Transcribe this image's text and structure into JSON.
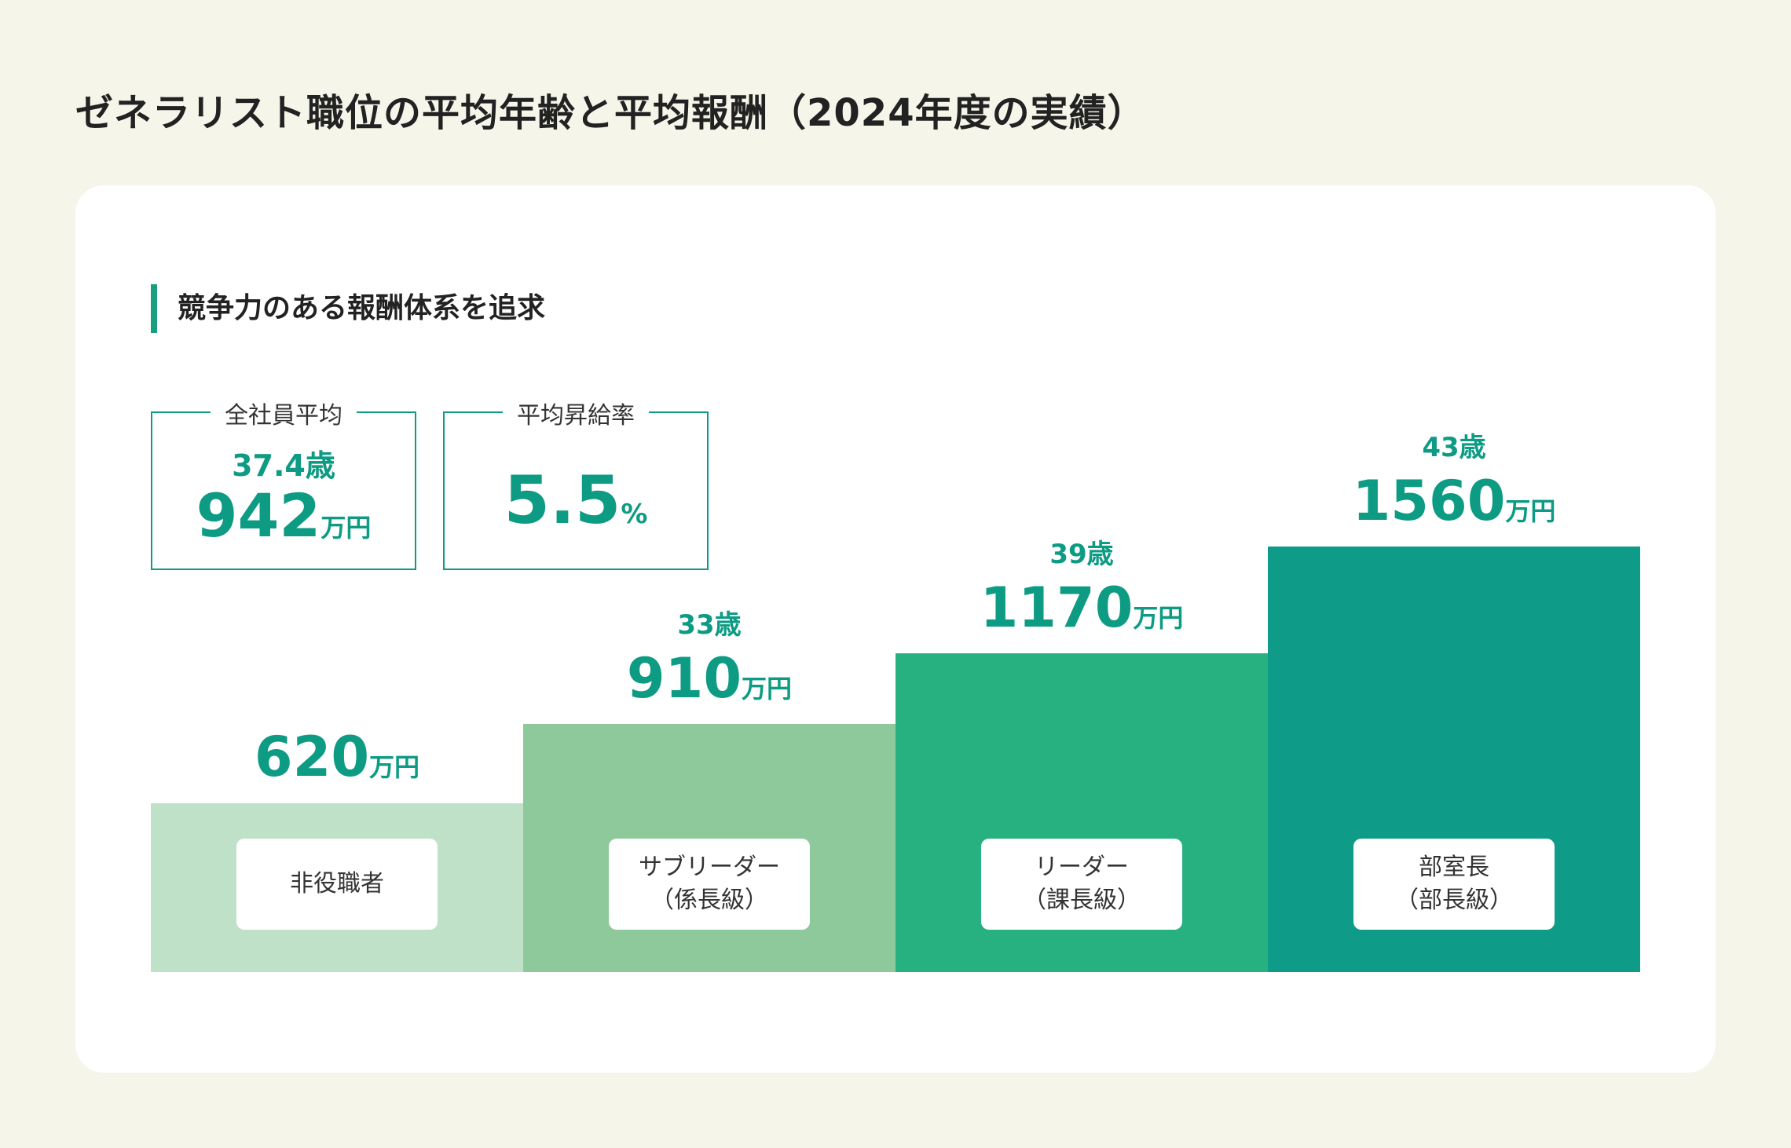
{
  "title": "ゼネラリスト職位の平均年齢と平均報酬（2024年度の実績）",
  "section_heading": "競争力のある報酬体系を追求",
  "stats": {
    "employee_avg": {
      "label": "全社員平均",
      "age": "37.4歳",
      "value": "942",
      "unit": "万円"
    },
    "raise_rate": {
      "label": "平均昇給率",
      "value": "5.5",
      "unit": "%"
    }
  },
  "chart_data": {
    "type": "bar",
    "categories": [
      "非役職者",
      "サブリーダー（係長級）",
      "リーダー（課長級）",
      "部室長（部長級）"
    ],
    "label_lines": [
      [
        "非役職者"
      ],
      [
        "サブリーダー",
        "（係長級）"
      ],
      [
        "リーダー",
        "（課長級）"
      ],
      [
        "部室長",
        "（部長級）"
      ]
    ],
    "values": [
      620,
      910,
      1170,
      1560
    ],
    "value_labels": [
      "620",
      "910",
      "1170",
      "1560"
    ],
    "unit": "万円",
    "ages": [
      "",
      "33歳",
      "39歳",
      "43歳"
    ],
    "colors": [
      "#bfe1c8",
      "#8dc99a",
      "#27b180",
      "#0e9b88"
    ],
    "label_color": "#0e9b83"
  }
}
